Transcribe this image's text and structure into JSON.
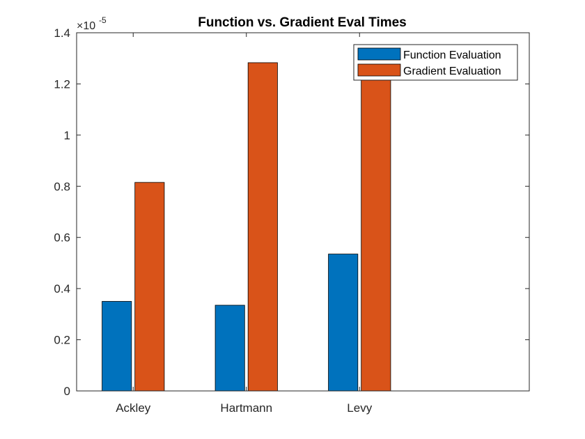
{
  "chart_data": {
    "type": "bar",
    "title": "Function vs. Gradient Eval Times",
    "xlabel": "",
    "ylabel": "",
    "categories": [
      "Ackley",
      "Hartmann",
      "Levy"
    ],
    "series": [
      {
        "name": "Function Evaluation",
        "color": "#0072BD",
        "values": [
          0.35,
          0.335,
          0.535
        ]
      },
      {
        "name": "Gradient Evaluation",
        "color": "#D95319",
        "values": [
          0.815,
          1.283,
          1.22
        ]
      }
    ],
    "ylim": [
      0,
      1.4
    ],
    "yticks": [
      "0",
      "0.2",
      "0.4",
      "0.6",
      "0.8",
      "1",
      "1.2",
      "1.4"
    ],
    "y_exponent": {
      "base": "×10",
      "power": "-5"
    },
    "grid": false,
    "legend_position": "top-right"
  }
}
